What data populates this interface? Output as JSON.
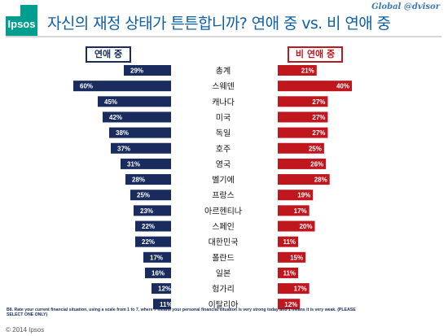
{
  "header": {
    "logo_text": "Ipsos",
    "title": "자신의 재정 상태가 튼튼합니까? 연애 중 vs. 비 연애 중",
    "brand": "Global @dvisor"
  },
  "colors": {
    "left_series": "#1a2c5e",
    "right_series": "#c0171f",
    "accent": "#009e8f"
  },
  "chart_data": {
    "type": "bar",
    "title": "자신의 재정 상태가 튼튼합니까? 연애 중 vs. 비 연애 중",
    "categories": [
      "총계",
      "스웨덴",
      "캐나다",
      "미국",
      "독일",
      "호주",
      "영국",
      "벨기에",
      "프랑스",
      "아르헨티나",
      "스페인",
      "대한민국",
      "폴란드",
      "일본",
      "헝가리",
      "이탈리아"
    ],
    "series": [
      {
        "name": "연애 중",
        "values": [
          29,
          60,
          45,
          42,
          38,
          37,
          31,
          28,
          25,
          23,
          22,
          22,
          17,
          16,
          12,
          11
        ]
      },
      {
        "name": "비 연애 중",
        "values": [
          21,
          40,
          27,
          27,
          27,
          25,
          26,
          28,
          19,
          17,
          20,
          11,
          15,
          11,
          17,
          12
        ]
      }
    ],
    "value_suffix": "%",
    "xlim": [
      0,
      60
    ],
    "grid": false,
    "legend": "top"
  },
  "footnote": "B8. Rate your current financial situation, using a scale from 1 to 7, where 7 means your personal financial situation is very strong today and 1 means it is very weak. (PLEASE SELECT ONE ONLY)",
  "copyright": "© 2014 Ipsos"
}
